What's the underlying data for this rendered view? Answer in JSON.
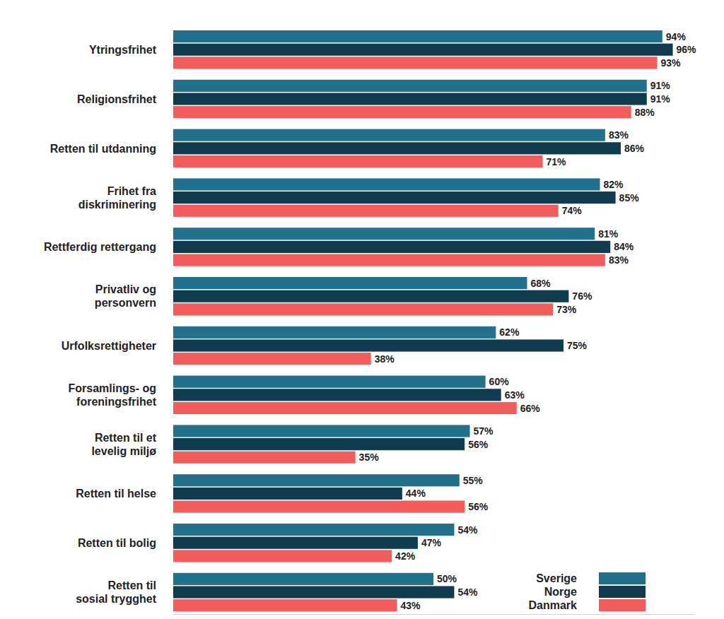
{
  "chart_data": {
    "type": "bar",
    "orientation": "horizontal",
    "data_labels": true,
    "tick_labels": false,
    "legend": "bottom-right",
    "xlim": [
      0,
      100
    ],
    "categories": [
      "Ytringsfrihet",
      "Religionsfrihet",
      "Retten til utdanning",
      "Frihet fra\ndiskriminering",
      "Rettferdig rettergang",
      "Privatliv og\npersonvern",
      "Urfolksrettigheter",
      "Forsamlings- og\nforeningsfrihet",
      "Retten til et\nlevelig miljø",
      "Retten til helse",
      "Retten til bolig",
      "Retten til\nsosial trygghet"
    ],
    "series": [
      {
        "name": "Sverige",
        "color": "#21718d",
        "values": [
          94,
          91,
          83,
          82,
          81,
          68,
          62,
          60,
          57,
          55,
          54,
          50
        ],
        "value_labels": [
          "94%",
          "91%",
          "83%",
          "82%",
          "81%",
          "68%",
          "62%",
          "60%",
          "57%",
          "55%",
          "54%",
          "50%"
        ]
      },
      {
        "name": "Norge",
        "color": "#0f3c4e",
        "values": [
          96,
          91,
          86,
          85,
          84,
          76,
          75,
          63,
          56,
          44,
          47,
          54
        ],
        "value_labels": [
          "96%",
          "91%",
          "86%",
          "85%",
          "84%",
          "76%",
          "75%",
          "63%",
          "56%",
          "44%",
          "47%",
          "54%"
        ]
      },
      {
        "name": "Danmark",
        "color": "#f25c5a",
        "values": [
          93,
          88,
          71,
          74,
          83,
          73,
          38,
          66,
          35,
          56,
          42,
          43
        ],
        "value_labels": [
          "93%",
          "88%",
          "71%",
          "74%",
          "83%",
          "73%",
          "38%",
          "66%",
          "35%",
          "56%",
          "42%",
          "43%"
        ]
      }
    ]
  }
}
